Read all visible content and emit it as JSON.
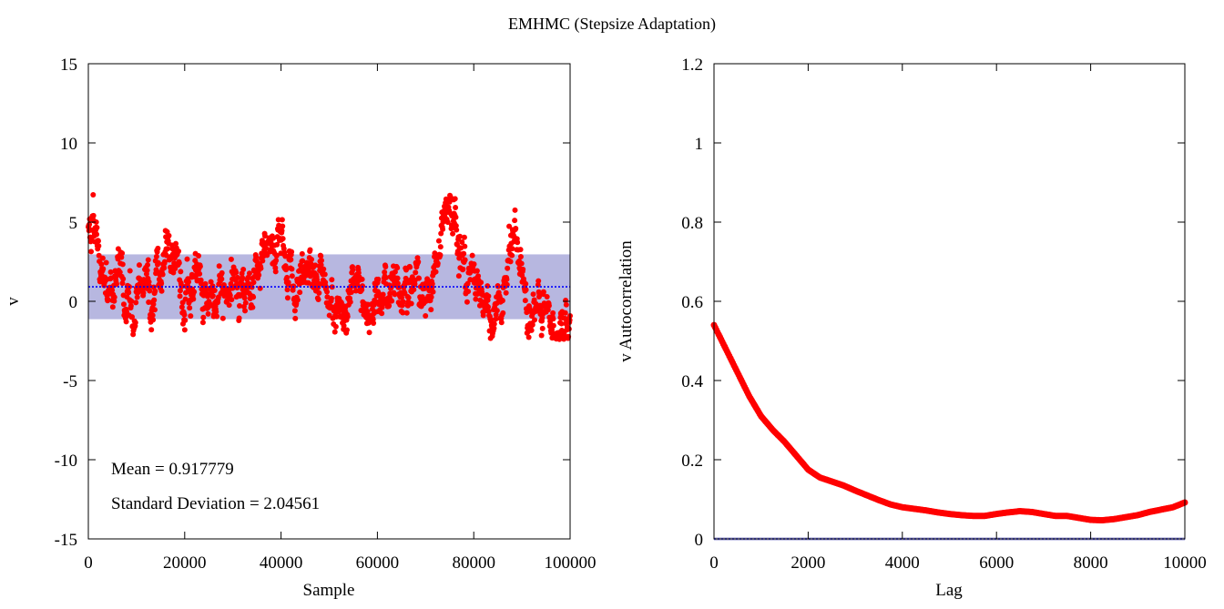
{
  "figure": {
    "title": "EMHMC (Stepsize Adaptation)"
  },
  "chart_data": [
    {
      "type": "scatter",
      "xlabel": "Sample",
      "ylabel": "v",
      "xlim": [
        0,
        100000
      ],
      "ylim": [
        -15,
        15
      ],
      "xticks": [
        0,
        20000,
        40000,
        60000,
        80000,
        100000
      ],
      "xtick_labels": [
        "0",
        "20000",
        "40000",
        "60000",
        "80000",
        "100000"
      ],
      "yticks": [
        -15,
        -10,
        -5,
        0,
        5,
        10,
        15
      ],
      "ytick_labels": [
        "-15",
        "-10",
        "-5",
        "0",
        "5",
        "10",
        "15"
      ],
      "mean": 0.917779,
      "std": 2.04561,
      "band": [
        -1.127831,
        2.963389
      ],
      "annotations": [
        "Mean = 0.917779",
        "Standard Deviation = 2.04561"
      ],
      "grid": false,
      "colors": {
        "points": "#ff0000",
        "band": "#b7b7e0",
        "mean_line": "#0000ff"
      },
      "trace_profile": {
        "x": [
          0,
          1000,
          2500,
          4000,
          6000,
          8000,
          9500,
          11000,
          13000,
          15000,
          16500,
          18000,
          20000,
          22000,
          25000,
          28000,
          30000,
          32000,
          34000,
          36000,
          38000,
          40000,
          42000,
          44000,
          46000,
          48000,
          50000,
          52000,
          54000,
          56000,
          58000,
          60000,
          62000,
          64000,
          66000,
          68000,
          70000,
          72000,
          74000,
          75500,
          77000,
          79000,
          81000,
          83000,
          85000,
          87000,
          88500,
          90000,
          92000,
          94000,
          96000,
          98000,
          100000
        ],
        "y": [
          4.5,
          5.8,
          2.5,
          1.0,
          1.5,
          0.5,
          -1.0,
          2.0,
          0.0,
          1.5,
          4.0,
          2.5,
          -0.5,
          0.5,
          0.3,
          0.0,
          0.5,
          1.0,
          0.5,
          2.5,
          2.5,
          3.5,
          1.0,
          1.5,
          3.0,
          1.5,
          0.0,
          0.5,
          -0.5,
          0.5,
          0.0,
          1.0,
          0.0,
          2.0,
          0.5,
          2.0,
          -0.5,
          1.5,
          4.5,
          5.5,
          3.0,
          2.0,
          1.0,
          -1.0,
          -0.5,
          1.5,
          4.5,
          1.5,
          -0.5,
          -1.0,
          -1.5,
          -1.5,
          -1.3
        ]
      }
    },
    {
      "type": "line",
      "xlabel": "Lag",
      "ylabel": "v Autocorrelation",
      "xlim": [
        0,
        10000
      ],
      "ylim": [
        0,
        1.2
      ],
      "xticks": [
        0,
        2000,
        4000,
        6000,
        8000,
        10000
      ],
      "xtick_labels": [
        "0",
        "2000",
        "4000",
        "6000",
        "8000",
        "10000"
      ],
      "yticks": [
        0,
        0.2,
        0.4,
        0.6,
        0.8,
        1,
        1.2
      ],
      "ytick_labels": [
        "0",
        "0.2",
        "0.4",
        "0.6",
        "0.8",
        "1",
        "1.2"
      ],
      "x": [
        0,
        250,
        500,
        750,
        1000,
        1250,
        1500,
        1750,
        2000,
        2250,
        2500,
        2750,
        3000,
        3250,
        3500,
        3750,
        4000,
        4250,
        4500,
        4750,
        5000,
        5250,
        5500,
        5750,
        6000,
        6250,
        6500,
        6750,
        7000,
        7250,
        7500,
        7750,
        8000,
        8250,
        8500,
        8750,
        9000,
        9250,
        9500,
        9750,
        10000
      ],
      "y": [
        0.54,
        0.48,
        0.42,
        0.36,
        0.31,
        0.275,
        0.245,
        0.21,
        0.175,
        0.155,
        0.145,
        0.135,
        0.122,
        0.11,
        0.098,
        0.087,
        0.08,
        0.076,
        0.072,
        0.067,
        0.063,
        0.06,
        0.058,
        0.058,
        0.063,
        0.067,
        0.07,
        0.068,
        0.063,
        0.058,
        0.058,
        0.053,
        0.048,
        0.047,
        0.05,
        0.055,
        0.06,
        0.068,
        0.074,
        0.08,
        0.092
      ],
      "band": [
        -0.004,
        0.004
      ],
      "grid": false,
      "colors": {
        "points": "#ff0000",
        "band": "#b7b7e0",
        "zero_line": "#0000ff"
      }
    }
  ]
}
